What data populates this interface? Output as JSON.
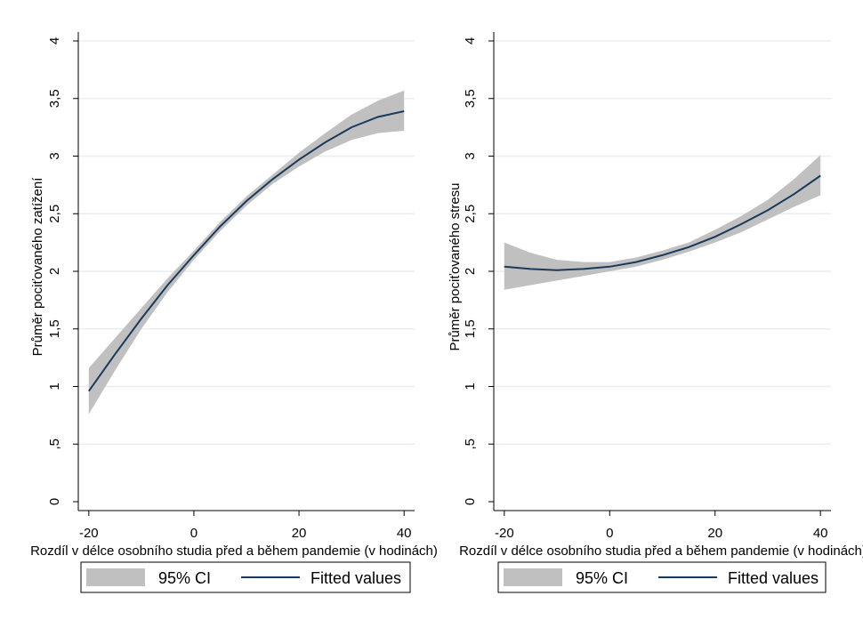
{
  "chart_data": [
    {
      "type": "line",
      "title": "",
      "xlabel": "Rozdíl v délce osobního studia před a během pandemie (v hodinách)",
      "ylabel": "Průměr pociťovaného zatížení",
      "xlim": [
        -22,
        42
      ],
      "ylim": [
        0,
        4
      ],
      "xticks": [
        -20,
        0,
        20,
        40
      ],
      "xtick_labels": [
        "-20",
        "0",
        "20",
        "40"
      ],
      "yticks": [
        0,
        0.5,
        1,
        1.5,
        2,
        2.5,
        3,
        3.5,
        4
      ],
      "ytick_labels": [
        "0",
        ",5",
        "1",
        "1,5",
        "2",
        "2,5",
        "3",
        "3,5",
        "4"
      ],
      "grid": true,
      "legend_position": "bottom",
      "x": [
        -20,
        -15,
        -10,
        -5,
        0,
        5,
        10,
        15,
        20,
        25,
        30,
        35,
        40
      ],
      "series": [
        {
          "name": "Fitted values",
          "values": [
            0.96,
            1.28,
            1.59,
            1.88,
            2.14,
            2.39,
            2.61,
            2.8,
            2.97,
            3.12,
            3.25,
            3.34,
            3.39
          ]
        },
        {
          "name": "95% CI",
          "lower": [
            0.76,
            1.14,
            1.5,
            1.82,
            2.1,
            2.35,
            2.57,
            2.76,
            2.91,
            3.04,
            3.14,
            3.2,
            3.22
          ],
          "upper": [
            1.16,
            1.42,
            1.68,
            1.94,
            2.18,
            2.43,
            2.65,
            2.84,
            3.03,
            3.2,
            3.36,
            3.48,
            3.57
          ]
        }
      ]
    },
    {
      "type": "line",
      "title": "",
      "xlabel": "Rozdíl v délce osobního studia před a během pandemie (v hodinách)",
      "ylabel": "Průměr pociťovaného stresu",
      "xlim": [
        -22,
        42
      ],
      "ylim": [
        0,
        4
      ],
      "xticks": [
        -20,
        0,
        20,
        40
      ],
      "xtick_labels": [
        "-20",
        "0",
        "20",
        "40"
      ],
      "yticks": [
        0,
        0.5,
        1,
        1.5,
        2,
        2.5,
        3,
        3.5,
        4
      ],
      "ytick_labels": [
        "0",
        ",5",
        "1",
        "1,5",
        "2",
        "2,5",
        "3",
        "3,5",
        "4"
      ],
      "grid": true,
      "legend_position": "bottom",
      "x": [
        -20,
        -15,
        -10,
        -5,
        0,
        5,
        10,
        15,
        20,
        25,
        30,
        35,
        40
      ],
      "series": [
        {
          "name": "Fitted values",
          "values": [
            2.04,
            2.02,
            2.01,
            2.02,
            2.04,
            2.08,
            2.14,
            2.21,
            2.3,
            2.41,
            2.53,
            2.67,
            2.83
          ]
        },
        {
          "name": "95% CI",
          "lower": [
            1.84,
            1.88,
            1.92,
            1.96,
            2.0,
            2.04,
            2.1,
            2.17,
            2.25,
            2.34,
            2.45,
            2.56,
            2.66
          ],
          "upper": [
            2.25,
            2.16,
            2.1,
            2.08,
            2.08,
            2.12,
            2.18,
            2.25,
            2.36,
            2.48,
            2.62,
            2.8,
            3.01
          ]
        }
      ]
    }
  ],
  "legend": {
    "ci_label": "95% CI",
    "fit_label": "Fitted values"
  },
  "colors": {
    "ci_band": "#c0c0c0",
    "fit_line": "#1a3a5c",
    "grid": "#e8eef2",
    "axis": "#000000"
  }
}
